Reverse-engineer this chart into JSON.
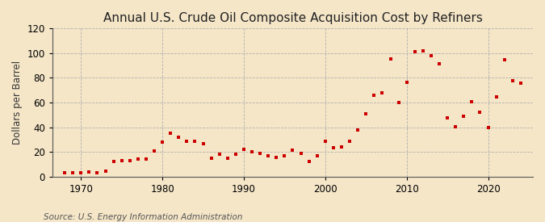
{
  "title": "Annual U.S. Crude Oil Composite Acquisition Cost by Refiners",
  "ylabel": "Dollars per Barrel",
  "source": "Source: U.S. Energy Information Administration",
  "background_color": "#f5e6c8",
  "plot_bg_color": "#f5e6c8",
  "marker_color": "#cc0000",
  "years": [
    1968,
    1969,
    1970,
    1971,
    1972,
    1973,
    1974,
    1975,
    1976,
    1977,
    1978,
    1979,
    1980,
    1981,
    1982,
    1983,
    1984,
    1985,
    1986,
    1987,
    1988,
    1989,
    1990,
    1991,
    1992,
    1993,
    1994,
    1995,
    1996,
    1997,
    1998,
    1999,
    2000,
    2001,
    2002,
    2003,
    2004,
    2005,
    2006,
    2007,
    2008,
    2009,
    2010,
    2011,
    2012,
    2013,
    2014,
    2015,
    2016,
    2017,
    2018,
    2019,
    2020,
    2021,
    2022,
    2023,
    2024
  ],
  "values": [
    3.2,
    3.2,
    3.4,
    3.6,
    3.4,
    4.1,
    12.5,
    13.0,
    13.1,
    14.5,
    14.5,
    21.0,
    28.1,
    35.2,
    31.9,
    28.9,
    28.8,
    26.8,
    14.6,
    17.9,
    14.7,
    17.9,
    21.8,
    20.3,
    18.7,
    16.8,
    15.6,
    17.0,
    21.3,
    18.9,
    12.1,
    17.0,
    28.4,
    23.2,
    24.1,
    28.6,
    37.7,
    50.9,
    66.1,
    68.1,
    95.1,
    59.9,
    76.5,
    101.0,
    102.0,
    98.0,
    91.2,
    47.7,
    40.6,
    48.7,
    60.7,
    52.1,
    39.7,
    64.4,
    95.0,
    78.0,
    76.0
  ],
  "xlim": [
    1966.5,
    2025.5
  ],
  "ylim": [
    0,
    120
  ],
  "yticks": [
    0,
    20,
    40,
    60,
    80,
    100,
    120
  ],
  "xticks": [
    1970,
    1980,
    1990,
    2000,
    2010,
    2020
  ],
  "grid_color": "#aaaaaa",
  "title_fontsize": 11,
  "label_fontsize": 8.5,
  "tick_fontsize": 8.5,
  "source_fontsize": 7.5
}
